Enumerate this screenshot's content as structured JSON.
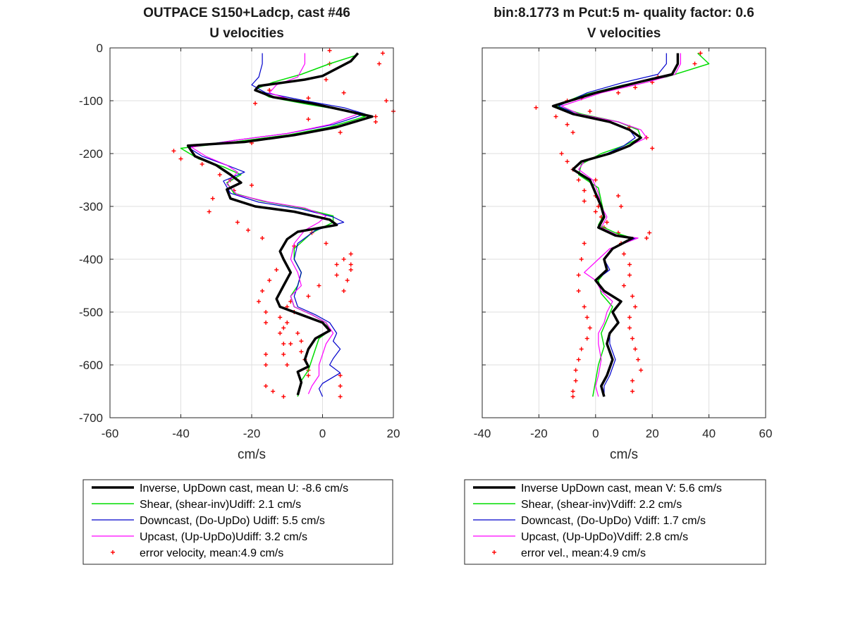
{
  "chart_data": [
    {
      "type": "line",
      "title": "OUTPACE S150+Ladcp, cast #46",
      "subtitle": "U velocities",
      "xlabel": "cm/s",
      "ylabel": "",
      "xlim": [
        -60,
        20
      ],
      "ylim": [
        -700,
        0
      ],
      "xticks": [
        "-60",
        "-40",
        "-20",
        "0",
        "20"
      ],
      "yticks": [
        "0",
        "-100",
        "-200",
        "-300",
        "-400",
        "-500",
        "-600",
        "-700"
      ],
      "grid": true,
      "legend_position": "below",
      "series": [
        {
          "name": "Inverse, UpDown cast, mean U:  -8.6 cm/s",
          "color": "#000000",
          "width": 3.5,
          "x": [
            10,
            8,
            0,
            -5,
            -18,
            -19,
            -14,
            -3,
            6,
            14,
            4,
            -8,
            -22,
            -38,
            -36,
            -30,
            -26,
            -23,
            -27,
            -26,
            -19,
            -8,
            2,
            4,
            -7,
            -10,
            -12,
            -11,
            -9,
            -11,
            -13,
            -12,
            -6,
            0,
            2,
            -2,
            -4,
            -5,
            -4,
            -7,
            -6,
            -7
          ],
          "y": [
            -10,
            -25,
            -53,
            -60,
            -72,
            -80,
            -93,
            -105,
            -118,
            -130,
            -150,
            -165,
            -178,
            -185,
            -205,
            -222,
            -240,
            -255,
            -268,
            -285,
            -300,
            -310,
            -325,
            -335,
            -348,
            -362,
            -385,
            -400,
            -425,
            -450,
            -475,
            -490,
            -505,
            -520,
            -535,
            -550,
            -570,
            -590,
            -603,
            -613,
            -633,
            -657
          ]
        },
        {
          "name": "Shear, (shear-inv)Udiff:  2.1 cm/s",
          "color": "#00dd00",
          "width": 1.5,
          "x": [
            9,
            2,
            -6,
            -14,
            -19,
            -15,
            -4,
            6,
            12,
            2,
            -10,
            -25,
            -40,
            -35,
            -28,
            -23,
            -27,
            -25,
            -17,
            -6,
            3,
            3,
            -3,
            -8,
            -8,
            -6,
            -7,
            -9,
            -8,
            -3,
            1,
            2,
            -1,
            -2,
            -3,
            -4,
            -6,
            -7
          ],
          "y": [
            -15,
            -30,
            -50,
            -65,
            -78,
            -93,
            -107,
            -118,
            -130,
            -150,
            -165,
            -178,
            -190,
            -210,
            -225,
            -240,
            -255,
            -275,
            -290,
            -303,
            -318,
            -330,
            -350,
            -380,
            -400,
            -425,
            -450,
            -470,
            -490,
            -505,
            -520,
            -535,
            -550,
            -570,
            -590,
            -610,
            -630,
            -660
          ]
        },
        {
          "name": "Downcast, (Do-UpDo) Udiff:  5.5 cm/s",
          "color": "#0000cc",
          "width": 1.2,
          "x": [
            -17,
            -17,
            -18,
            -20,
            -16,
            -5,
            6,
            12,
            3,
            -10,
            -25,
            -38,
            -34,
            -27,
            -22,
            -28,
            -26,
            -18,
            -6,
            3,
            6,
            -2,
            -7,
            -8,
            -6,
            -7,
            -8,
            -7,
            -2,
            2,
            4,
            3,
            5,
            3,
            2,
            5,
            0,
            -1,
            0
          ],
          "y": [
            -10,
            -30,
            -55,
            -70,
            -85,
            -100,
            -113,
            -125,
            -145,
            -162,
            -175,
            -188,
            -205,
            -222,
            -235,
            -252,
            -275,
            -292,
            -305,
            -320,
            -330,
            -345,
            -370,
            -400,
            -425,
            -450,
            -470,
            -490,
            -505,
            -520,
            -540,
            -555,
            -570,
            -588,
            -600,
            -615,
            -635,
            -645,
            -660
          ]
        },
        {
          "name": "Upcast, (Up-UpDo)Udiff:  3.2 cm/s",
          "color": "#ff00ff",
          "width": 1.2,
          "x": [
            -5,
            -5,
            -7,
            -13,
            -15,
            -8,
            3,
            10,
            2,
            -10,
            -25,
            -37,
            -33,
            -27,
            -24,
            -27,
            -24,
            -15,
            -5,
            1,
            -1,
            -5,
            -8,
            -9,
            -7,
            -6,
            -9,
            -8,
            -3,
            1,
            3,
            1,
            0,
            -1,
            -1,
            -3,
            -4
          ],
          "y": [
            -10,
            -30,
            -55,
            -70,
            -85,
            -100,
            -113,
            -125,
            -145,
            -162,
            -175,
            -188,
            -205,
            -222,
            -235,
            -258,
            -278,
            -292,
            -303,
            -318,
            -330,
            -345,
            -370,
            -400,
            -425,
            -450,
            -470,
            -490,
            -505,
            -520,
            -540,
            -560,
            -580,
            -600,
            -620,
            -640,
            -655
          ]
        },
        {
          "name": "error velocity, mean:4.9 cm/s",
          "color": "#ff0000",
          "style": "markers",
          "x": [
            2,
            2,
            1,
            -4,
            -15,
            -19,
            -4,
            5,
            15,
            20,
            18,
            6,
            -20,
            -42,
            -40,
            -34,
            -29,
            -20,
            -31,
            -25,
            -26,
            -32,
            -24,
            -21,
            -17,
            -8,
            -3,
            1,
            8,
            8,
            -13,
            -15,
            -17,
            -18,
            -16,
            -16,
            -7,
            -6,
            -6,
            -5,
            -4,
            -4,
            -16,
            -14,
            -11,
            -10,
            -11,
            -9,
            -11,
            -12,
            -10,
            -4,
            -1,
            4,
            4,
            6,
            8,
            7,
            6,
            -9,
            -8,
            -10,
            -12,
            -11,
            -16,
            -16,
            5,
            5,
            5,
            16,
            17,
            15
          ],
          "y": [
            -5,
            -30,
            -60,
            -95,
            -80,
            -105,
            -135,
            -160,
            -130,
            -120,
            -100,
            -85,
            -180,
            -195,
            -210,
            -220,
            -240,
            -260,
            -285,
            -270,
            -250,
            -310,
            -330,
            -345,
            -360,
            -375,
            -350,
            -370,
            -390,
            -410,
            -420,
            -440,
            -460,
            -480,
            -500,
            -520,
            -540,
            -555,
            -575,
            -590,
            -610,
            -620,
            -640,
            -650,
            -660,
            -600,
            -580,
            -560,
            -530,
            -510,
            -490,
            -470,
            -450,
            -430,
            -410,
            -400,
            -420,
            -440,
            -460,
            -480,
            -500,
            -520,
            -540,
            -560,
            -580,
            -600,
            -620,
            -640,
            -660,
            -30,
            -10,
            -140
          ]
        }
      ]
    },
    {
      "type": "line",
      "title": "bin:8.1773 m  Pcut:5 m- quality factor:  0.6",
      "subtitle": "V velocities",
      "xlabel": "cm/s",
      "ylabel": "",
      "xlim": [
        -40,
        60
      ],
      "ylim": [
        -700,
        0
      ],
      "xticks": [
        "-40",
        "-20",
        "0",
        "20",
        "40",
        "60"
      ],
      "yticks": [
        "0",
        "-100",
        "-200",
        "-300",
        "-400",
        "-500",
        "-600",
        "-700"
      ],
      "grid": true,
      "legend_position": "below",
      "series": [
        {
          "name": "Inverse UpDown cast, mean V:  5.6 cm/s",
          "color": "#000000",
          "width": 3.5,
          "x": [
            29,
            29,
            27,
            15,
            0,
            -15,
            -8,
            5,
            12,
            16,
            12,
            5,
            -5,
            -8,
            -2,
            0,
            2,
            3,
            1,
            7,
            13,
            6,
            3,
            4,
            0,
            3,
            9,
            6,
            8,
            5,
            4,
            6,
            4,
            2,
            3
          ],
          "y": [
            -10,
            -30,
            -50,
            -65,
            -85,
            -110,
            -125,
            -140,
            -155,
            -170,
            -185,
            -200,
            -215,
            -230,
            -250,
            -275,
            -300,
            -320,
            -340,
            -355,
            -360,
            -380,
            -400,
            -420,
            -440,
            -460,
            -480,
            -500,
            -520,
            -540,
            -560,
            -590,
            -620,
            -640,
            -660
          ]
        },
        {
          "name": "Shear, (shear-inv)Vdiff:  2.2 cm/s",
          "color": "#00dd00",
          "width": 1.5,
          "x": [
            36,
            40,
            25,
            10,
            -5,
            -14,
            -5,
            8,
            15,
            16,
            10,
            2,
            -5,
            -6,
            1,
            2,
            3,
            1,
            7,
            13,
            6,
            3,
            4,
            1,
            2,
            6,
            4,
            2,
            3,
            1,
            0,
            -1
          ],
          "y": [
            -10,
            -30,
            -55,
            -70,
            -90,
            -110,
            -125,
            -140,
            -155,
            -170,
            -185,
            -200,
            -220,
            -240,
            -265,
            -290,
            -315,
            -335,
            -350,
            -360,
            -380,
            -400,
            -420,
            -440,
            -465,
            -490,
            -515,
            -540,
            -565,
            -600,
            -630,
            -660
          ]
        },
        {
          "name": "Downcast, (Do-UpDo) Vdiff:  1.7 cm/s",
          "color": "#0000cc",
          "width": 1.2,
          "x": [
            25,
            25,
            22,
            10,
            -3,
            -13,
            -7,
            5,
            12,
            14,
            10,
            4,
            -5,
            -8,
            -2,
            0,
            2,
            3,
            1,
            8,
            14,
            6,
            3,
            5,
            0,
            3,
            9,
            6,
            8,
            5,
            5,
            7,
            5,
            3,
            3
          ],
          "y": [
            -10,
            -30,
            -50,
            -65,
            -85,
            -110,
            -125,
            -140,
            -155,
            -170,
            -185,
            -200,
            -215,
            -230,
            -250,
            -275,
            -300,
            -320,
            -340,
            -355,
            -360,
            -380,
            -400,
            -420,
            -440,
            -460,
            -480,
            -500,
            -520,
            -540,
            -560,
            -590,
            -620,
            -640,
            -660
          ]
        },
        {
          "name": "Upcast, (Up-UpDo)Vdiff:  2.8 cm/s",
          "color": "#ff00ff",
          "width": 1.2,
          "x": [
            30,
            30,
            28,
            18,
            2,
            -12,
            -6,
            8,
            16,
            18,
            12,
            5,
            -4,
            -6,
            -1,
            1,
            2,
            4,
            2,
            8,
            15,
            5,
            1,
            -4,
            0,
            2,
            6,
            4,
            3,
            1,
            1,
            2,
            1,
            0,
            1
          ],
          "y": [
            -10,
            -30,
            -50,
            -65,
            -85,
            -110,
            -125,
            -140,
            -155,
            -170,
            -185,
            -200,
            -215,
            -230,
            -250,
            -275,
            -300,
            -320,
            -340,
            -355,
            -360,
            -380,
            -400,
            -425,
            -440,
            -460,
            -480,
            -500,
            -520,
            -540,
            -560,
            -590,
            -620,
            -640,
            -660
          ]
        },
        {
          "name": "error vel., mean:4.9 cm/s",
          "color": "#ff0000",
          "style": "markers",
          "x": [
            37,
            35,
            22,
            20,
            14,
            8,
            -5,
            -10,
            -21,
            -14,
            -10,
            -8,
            -2,
            12,
            18,
            20,
            -12,
            -10,
            -8,
            -6,
            -4,
            -4,
            0,
            4,
            8,
            9,
            10,
            12,
            12,
            10,
            18,
            19,
            13,
            14,
            12,
            12,
            13,
            14,
            15,
            16,
            13,
            13,
            -4,
            -5,
            -6,
            -6,
            -4,
            -3,
            -2,
            -3,
            -5,
            -6,
            -7,
            -7,
            -8,
            -8,
            0,
            0,
            1,
            2,
            3,
            8,
            9
          ],
          "y": [
            -10,
            -30,
            -55,
            -65,
            -75,
            -85,
            -95,
            -100,
            -113,
            -130,
            -145,
            -160,
            -120,
            -150,
            -170,
            -190,
            -200,
            -215,
            -230,
            -250,
            -270,
            -290,
            -310,
            -330,
            -350,
            -370,
            -390,
            -410,
            -430,
            -450,
            -360,
            -350,
            -470,
            -490,
            -510,
            -530,
            -550,
            -570,
            -590,
            -610,
            -630,
            -650,
            -370,
            -400,
            -430,
            -460,
            -490,
            -510,
            -530,
            -550,
            -570,
            -590,
            -610,
            -630,
            -650,
            -660,
            -250,
            -280,
            -300,
            -320,
            -340,
            -280,
            -300
          ]
        }
      ]
    }
  ]
}
